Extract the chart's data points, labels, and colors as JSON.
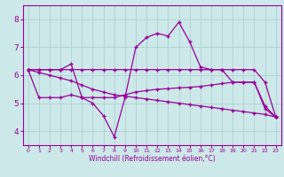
{
  "x": [
    0,
    1,
    2,
    3,
    4,
    5,
    6,
    7,
    8,
    9,
    10,
    11,
    12,
    13,
    14,
    15,
    16,
    17,
    18,
    19,
    20,
    21,
    22,
    23
  ],
  "line_flat": [
    6.2,
    6.2,
    6.2,
    6.2,
    6.2,
    6.2,
    6.2,
    6.2,
    6.2,
    6.2,
    6.2,
    6.2,
    6.2,
    6.2,
    6.2,
    6.2,
    6.2,
    6.2,
    6.2,
    6.2,
    6.2,
    6.2,
    5.75,
    4.5
  ],
  "line_diag": [
    6.2,
    6.1,
    6.0,
    5.9,
    5.8,
    5.65,
    5.5,
    5.4,
    5.3,
    5.25,
    5.2,
    5.15,
    5.1,
    5.05,
    5.0,
    4.95,
    4.9,
    4.85,
    4.8,
    4.75,
    4.7,
    4.65,
    4.6,
    4.5
  ],
  "line_spiky": [
    6.2,
    6.2,
    6.2,
    6.2,
    6.4,
    5.2,
    5.0,
    4.55,
    3.8,
    5.2,
    7.0,
    7.35,
    7.5,
    7.4,
    7.9,
    7.2,
    6.3,
    6.2,
    6.2,
    5.75,
    5.75,
    5.75,
    4.8,
    4.5
  ],
  "line_mid": [
    6.2,
    5.2,
    5.2,
    5.2,
    5.3,
    5.2,
    5.2,
    5.2,
    5.2,
    5.3,
    5.4,
    5.45,
    5.5,
    5.52,
    5.55,
    5.57,
    5.6,
    5.65,
    5.7,
    5.75,
    5.75,
    5.75,
    4.9,
    4.5
  ],
  "color": "#990099",
  "bg_color": "#cce8e8",
  "grid_color": "#aacccc",
  "xlabel": "Windchill (Refroidissement éolien,°C)",
  "ylim": [
    3.5,
    8.5
  ],
  "xlim": [
    -0.5,
    23.5
  ],
  "yticks": [
    4,
    5,
    6,
    7,
    8
  ],
  "xticks": [
    0,
    1,
    2,
    3,
    4,
    5,
    6,
    7,
    8,
    9,
    10,
    11,
    12,
    13,
    14,
    15,
    16,
    17,
    18,
    19,
    20,
    21,
    22,
    23
  ]
}
